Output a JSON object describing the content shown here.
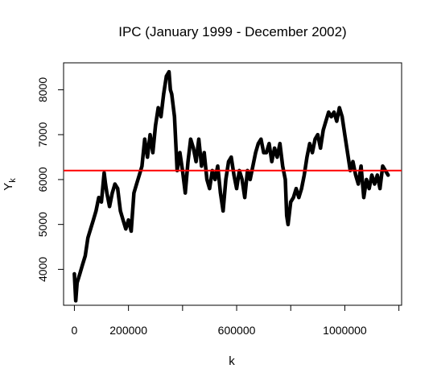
{
  "chart_data": {
    "type": "line",
    "title": "IPC (January 1999 - December 2002)",
    "xlabel": "k",
    "ylabel_main": "Y",
    "ylabel_sub": "k",
    "xlim": [
      -40000,
      1210000
    ],
    "ylim": [
      3200,
      8600
    ],
    "x_ticks": [
      0,
      200000,
      400000,
      600000,
      800000,
      1000000,
      1200000
    ],
    "x_tick_labels": [
      "0",
      "200000",
      "",
      "600000",
      "",
      "1000000",
      ""
    ],
    "y_ticks": [
      4000,
      5000,
      6000,
      7000,
      8000
    ],
    "y_tick_labels": [
      "4000",
      "5000",
      "6000",
      "7000",
      "8000"
    ],
    "grid": false,
    "series": [
      {
        "color": "#000000",
        "x": [
          0,
          5000,
          10000,
          20000,
          30000,
          40000,
          50000,
          60000,
          70000,
          80000,
          90000,
          100000,
          110000,
          115000,
          120000,
          130000,
          140000,
          150000,
          160000,
          170000,
          180000,
          190000,
          200000,
          210000,
          220000,
          230000,
          240000,
          250000,
          260000,
          270000,
          280000,
          290000,
          300000,
          310000,
          320000,
          330000,
          340000,
          350000,
          355000,
          360000,
          370000,
          380000,
          390000,
          400000,
          410000,
          420000,
          430000,
          440000,
          450000,
          460000,
          470000,
          480000,
          490000,
          500000,
          510000,
          520000,
          530000,
          540000,
          550000,
          560000,
          570000,
          580000,
          590000,
          600000,
          610000,
          620000,
          630000,
          640000,
          650000,
          660000,
          670000,
          680000,
          690000,
          700000,
          710000,
          720000,
          730000,
          740000,
          750000,
          760000,
          770000,
          780000,
          785000,
          790000,
          800000,
          810000,
          820000,
          830000,
          840000,
          850000,
          860000,
          870000,
          880000,
          890000,
          900000,
          910000,
          920000,
          930000,
          940000,
          950000,
          960000,
          970000,
          980000,
          990000,
          1000000,
          1010000,
          1020000,
          1030000,
          1040000,
          1050000,
          1060000,
          1070000,
          1080000,
          1090000,
          1100000,
          1110000,
          1120000,
          1130000,
          1140000,
          1160000
        ],
        "y": [
          3900,
          3300,
          3700,
          3900,
          4100,
          4300,
          4700,
          4900,
          5100,
          5300,
          5600,
          5500,
          6150,
          5900,
          5700,
          5400,
          5700,
          5900,
          5800,
          5300,
          5100,
          4900,
          5100,
          4850,
          5700,
          5900,
          6100,
          6300,
          6900,
          6500,
          7000,
          6600,
          7200,
          7600,
          7400,
          7900,
          8300,
          8400,
          8000,
          7900,
          7400,
          6200,
          6600,
          6200,
          5700,
          6400,
          6900,
          6700,
          6400,
          6900,
          6300,
          6600,
          6000,
          5800,
          6200,
          6000,
          6300,
          5700,
          5300,
          6000,
          6400,
          6500,
          6100,
          5800,
          6200,
          6000,
          5600,
          6200,
          6000,
          6300,
          6600,
          6800,
          6900,
          6600,
          6600,
          6800,
          6400,
          6700,
          6500,
          6800,
          6300,
          6000,
          5200,
          5000,
          5500,
          5600,
          5800,
          5600,
          5800,
          6100,
          6500,
          6800,
          6600,
          6900,
          7000,
          6700,
          7100,
          7300,
          7500,
          7400,
          7500,
          7300,
          7600,
          7400,
          7000,
          6600,
          6200,
          6400,
          6100,
          5900,
          6300,
          5600,
          6000,
          5800,
          6100,
          5900,
          6100,
          5800,
          6300,
          6100
        ]
      },
      {
        "color": "#ff0000",
        "hline": 6200
      }
    ]
  }
}
